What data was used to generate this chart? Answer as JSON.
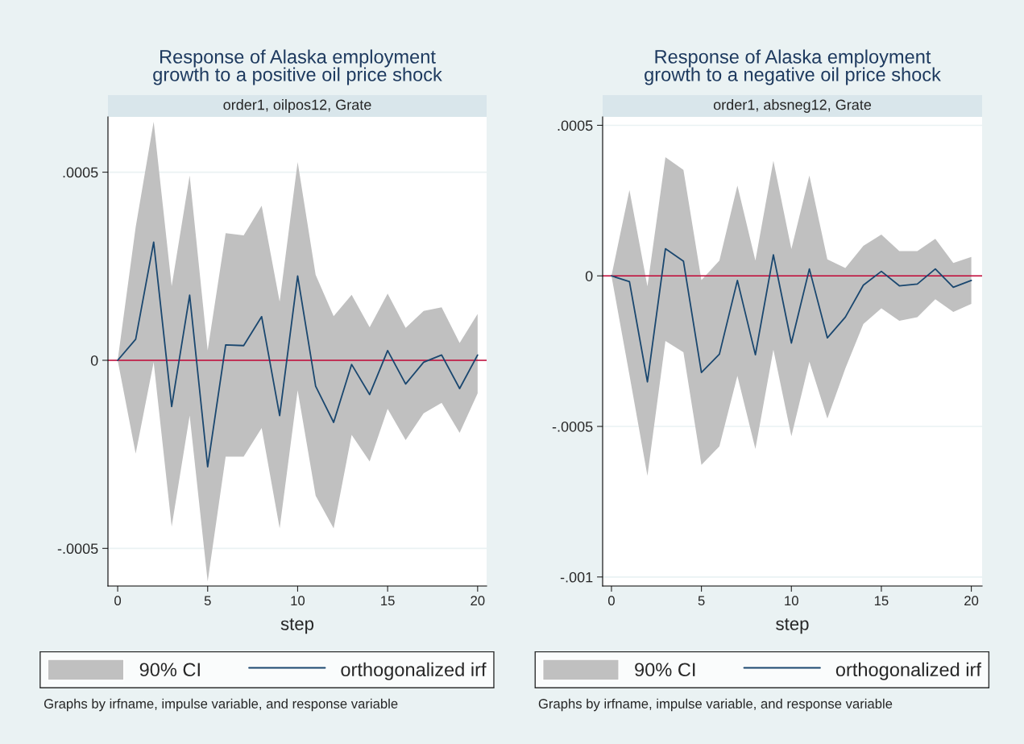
{
  "chart_data": [
    {
      "type": "line",
      "title": "Response of Alaska employment\ngrowth to a positive oil price shock",
      "subtitle": "order1, oilpos12, Grate",
      "xlabel": "step",
      "x": [
        0,
        1,
        2,
        3,
        4,
        5,
        6,
        7,
        8,
        9,
        10,
        11,
        12,
        13,
        14,
        15,
        16,
        17,
        18,
        19,
        20
      ],
      "series": [
        {
          "name": "orthogonalized irf",
          "type": "line",
          "color": "#1a476f",
          "values": [
            0,
            5.6e-05,
            0.000314,
            -0.000123,
            0.000173,
            -0.000283,
            4.1e-05,
            3.9e-05,
            0.000116,
            -0.000147,
            0.000224,
            -6.9e-05,
            -0.000165,
            -1.1e-05,
            -9.1e-05,
            2.6e-05,
            -6.3e-05,
            -5e-06,
            1.4e-05,
            -7.5e-05,
            1.4e-05
          ],
          "upper": [
            0,
            0.000354,
            0.000634,
            0.000197,
            0.000491,
            2.6e-05,
            0.000338,
            0.000332,
            0.000411,
            0.000156,
            0.000527,
            0.000227,
            0.000117,
            0.000174,
            8.8e-05,
            0.000177,
            8.6e-05,
            0.000131,
            0.000141,
            4.6e-05,
            0.000123
          ],
          "lower": [
            0,
            -0.000248,
            -5e-06,
            -0.000442,
            -0.000147,
            -0.000588,
            -0.000256,
            -0.000256,
            -0.00018,
            -0.000447,
            -8e-05,
            -0.00036,
            -0.000447,
            -0.000198,
            -0.000269,
            -0.000129,
            -0.000212,
            -0.000141,
            -0.000113,
            -0.000193,
            -8.8e-05
          ]
        }
      ],
      "xlim": [
        -0.54,
        20.5
      ],
      "xticks": [
        0,
        5,
        10,
        15,
        20
      ],
      "ylim": [
        -0.0006,
        0.000647
      ],
      "yticks": [
        {
          "value": -0.0005,
          "label": "-.0005"
        },
        0,
        {
          "value": 0.0005,
          "label": ".0005"
        }
      ],
      "ref_lines": [
        {
          "axis": "y",
          "value": 0,
          "color": "#c10534"
        }
      ],
      "grid": "y",
      "legend": "bottom",
      "annotations": [
        "90% CI",
        "Graphs by irfname, impulse variable, and response variable"
      ]
    },
    {
      "type": "line",
      "title": "Response of Alaska employment\ngrowth to a negative oil price shock",
      "subtitle": "order1, absneg12, Grate",
      "xlabel": "step",
      "x": [
        0,
        1,
        2,
        3,
        4,
        5,
        6,
        7,
        8,
        9,
        10,
        11,
        12,
        13,
        14,
        15,
        16,
        17,
        18,
        19,
        20
      ],
      "series": [
        {
          "name": "orthogonalized irf",
          "type": "line",
          "color": "#1a476f",
          "values": [
            0,
            -1.9e-05,
            -0.000352,
            9e-05,
            4.9e-05,
            -0.000321,
            -0.00026,
            -1.5e-05,
            -0.000262,
            7e-05,
            -0.000223,
            2.3e-05,
            -0.000206,
            -0.000137,
            -3.1e-05,
            1.5e-05,
            -3.3e-05,
            -2.7e-05,
            2.3e-05,
            -3.8e-05,
            -1.5e-05
          ],
          "upper": [
            0,
            0.000285,
            -3.5e-05,
            0.000394,
            0.000352,
            -1.4e-05,
            5.1e-05,
            0.0003,
            5.1e-05,
            0.000382,
            8.9e-05,
            0.000333,
            5.5e-05,
            2.6e-05,
            0.0001,
            0.000137,
            8.2e-05,
            8.2e-05,
            0.000123,
            4.3e-05,
            6.3e-05
          ],
          "lower": [
            0,
            -0.000329,
            -0.000664,
            -0.000216,
            -0.000254,
            -0.000628,
            -0.000566,
            -0.000332,
            -0.000575,
            -0.000245,
            -0.000533,
            -0.000285,
            -0.000474,
            -0.000307,
            -0.00016,
            -0.000108,
            -0.000149,
            -0.000137,
            -7.8e-05,
            -0.00012,
            -9.3e-05
          ]
        }
      ],
      "xlim": [
        -0.49,
        20.6
      ],
      "xticks": [
        0,
        5,
        10,
        15,
        20
      ],
      "ylim": [
        -0.00103,
        0.000528
      ],
      "yticks": [
        {
          "value": -0.001,
          "label": "-.001"
        },
        {
          "value": -0.0005,
          "label": "-.0005"
        },
        0,
        {
          "value": 0.0005,
          "label": ".0005"
        }
      ],
      "ref_lines": [
        {
          "axis": "y",
          "value": 0,
          "color": "#c10534"
        }
      ],
      "grid": "y",
      "legend": "bottom",
      "annotations": [
        "90% CI",
        "Graphs by irfname, impulse variable, and response variable"
      ]
    }
  ]
}
